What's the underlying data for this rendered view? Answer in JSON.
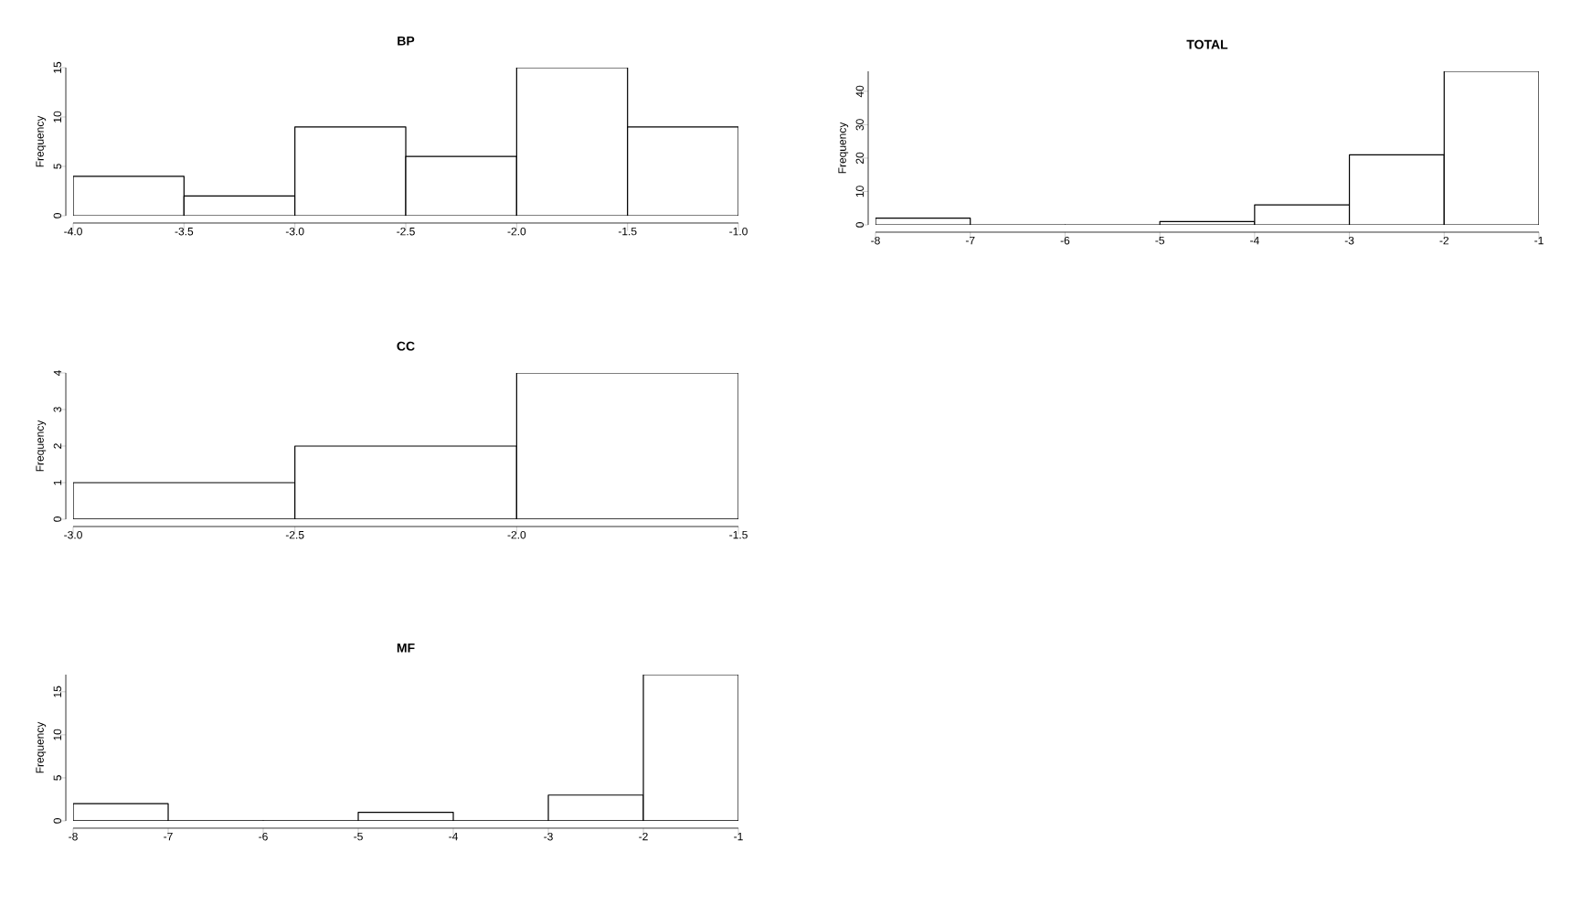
{
  "chart_data": [
    {
      "type": "histogram",
      "title": "BP",
      "ylabel": "Frequency",
      "bins": [
        -4.0,
        -3.5,
        -3.0,
        -2.5,
        -2.0,
        -1.5,
        -1.0
      ],
      "values": [
        4,
        2,
        9,
        6,
        15,
        9
      ],
      "xlim": [
        -4.0,
        -1.0
      ],
      "xticks": [
        {
          "value": -4.0,
          "label": "-4.0"
        },
        {
          "value": -3.5,
          "label": "-3.5"
        },
        {
          "value": -3.0,
          "label": "-3.0"
        },
        {
          "value": -2.5,
          "label": "-2.5"
        },
        {
          "value": -2.0,
          "label": "-2.0"
        },
        {
          "value": -1.5,
          "label": "-1.5"
        },
        {
          "value": -1.0,
          "label": "-1.0"
        }
      ],
      "ylim": [
        0,
        15
      ],
      "yticks": [
        0,
        5,
        10,
        15
      ]
    },
    {
      "type": "histogram",
      "title": "TOTAL",
      "ylabel": "Frequency",
      "bins": [
        -8,
        -7,
        -6,
        -5,
        -4,
        -3,
        -2,
        -1
      ],
      "values": [
        2,
        0,
        0,
        1,
        6,
        21,
        46
      ],
      "xlim": [
        -8,
        -1
      ],
      "xticks": [
        -8,
        -7,
        -6,
        -5,
        -4,
        -3,
        -2,
        -1
      ],
      "ylim": [
        0,
        46
      ],
      "yticks": [
        0,
        10,
        20,
        30,
        40
      ]
    },
    {
      "type": "histogram",
      "title": "CC",
      "ylabel": "Frequency",
      "bins": [
        -3.0,
        -2.5,
        -2.0,
        -1.5
      ],
      "values": [
        1,
        2,
        4
      ],
      "xlim": [
        -3.0,
        -1.5
      ],
      "xticks": [
        {
          "value": -3.0,
          "label": "-3.0"
        },
        {
          "value": -2.5,
          "label": "-2.5"
        },
        {
          "value": -2.0,
          "label": "-2.0"
        },
        {
          "value": -1.5,
          "label": "-1.5"
        }
      ],
      "ylim": [
        0,
        4
      ],
      "yticks": [
        0,
        1,
        2,
        3,
        4
      ]
    },
    {
      "type": "histogram",
      "title": "MF",
      "ylabel": "Frequency",
      "bins": [
        -8,
        -7,
        -6,
        -5,
        -4,
        -3,
        -2,
        -1
      ],
      "values": [
        2,
        0,
        0,
        1,
        0,
        3,
        17
      ],
      "xlim": [
        -8,
        -1
      ],
      "xticks": [
        -8,
        -7,
        -6,
        -5,
        -4,
        -3,
        -2,
        -1
      ],
      "ylim": [
        0,
        17
      ],
      "yticks": [
        0,
        5,
        10,
        15
      ]
    }
  ]
}
